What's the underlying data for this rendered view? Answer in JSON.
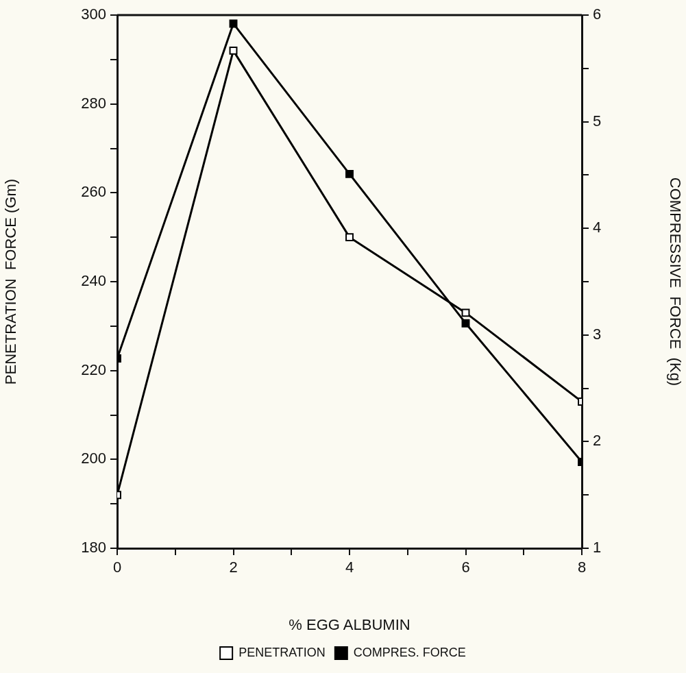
{
  "chart_data": {
    "type": "line",
    "xlabel": "% EGG ALBUMIN",
    "ylabel": "PENETRATION  FORCE (Gm)",
    "y2label": "COMPRESSIVE  FORCE  (Kg)",
    "x": [
      0,
      2,
      4,
      6,
      8
    ],
    "xlim": [
      0,
      8
    ],
    "xticks": [
      0,
      {
        "value": 1,
        "label": null
      },
      2,
      {
        "value": 3,
        "label": null
      },
      4,
      {
        "value": 5,
        "label": null
      },
      6,
      {
        "value": 7,
        "label": null
      },
      8
    ],
    "ylim": [
      180,
      300
    ],
    "yticks": [
      180,
      {
        "value": 190,
        "label": null
      },
      200,
      {
        "value": 210,
        "label": null
      },
      220,
      {
        "value": 230,
        "label": null
      },
      240,
      {
        "value": 250,
        "label": null
      },
      260,
      {
        "value": 270,
        "label": null
      },
      280,
      {
        "value": 290,
        "label": null
      },
      300
    ],
    "y2lim": [
      1,
      6
    ],
    "y2ticks": [
      1,
      {
        "value": 1.5,
        "label": null
      },
      2,
      {
        "value": 2.5,
        "label": null
      },
      3,
      {
        "value": 3.5,
        "label": null
      },
      4,
      {
        "value": 4.5,
        "label": null
      },
      5,
      {
        "value": 5.5,
        "label": null
      },
      6
    ],
    "series": [
      {
        "name": "PENETRATION",
        "color": "#000000",
        "values": [
          192,
          292,
          250,
          233,
          213
        ]
      },
      {
        "name": "COMPRES. FORCE",
        "color": "#000000",
        "axis": "y2",
        "values": [
          2.78,
          5.92,
          4.51,
          3.11,
          1.81
        ]
      }
    ],
    "marker": "square",
    "line_style": "solid",
    "grid": false,
    "legend": "bottom"
  }
}
